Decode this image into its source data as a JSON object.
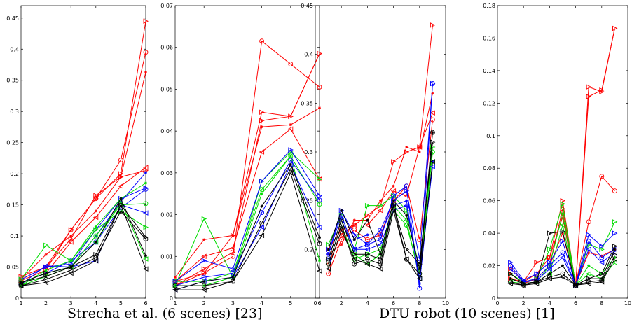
{
  "captions": {
    "left": "Strecha et al. (6 scenes) [23]",
    "right": "DTU robot (10 scenes) [1]"
  },
  "chart_data": [
    {
      "type": "line",
      "group": "Strecha et al. (6 scenes) [23]",
      "x": [
        1,
        2,
        3,
        4,
        5,
        6
      ],
      "xlim": [
        1,
        6
      ],
      "ylim": [
        0,
        0.47
      ],
      "xticks": [
        1,
        2,
        3,
        4,
        5,
        6
      ],
      "yticks": [
        0,
        0.05,
        0.1,
        0.15,
        0.2,
        0.25,
        0.3,
        0.35,
        0.4,
        0.45
      ],
      "ytick_labels": [
        "0",
        "0.05",
        "0.1",
        "0.15",
        "0.2",
        "0.25",
        "0.3",
        "0.35",
        "0.4",
        "0.45"
      ],
      "series": [
        {
          "color": "#ff0000",
          "marker": "triangle-right",
          "values": [
            0.03,
            0.05,
            0.11,
            0.16,
            0.2,
            0.445
          ]
        },
        {
          "color": "#ff0000",
          "marker": "circle",
          "values": [
            0.028,
            0.045,
            0.11,
            0.16,
            0.222,
            0.395
          ]
        },
        {
          "color": "#ff0000",
          "marker": "star",
          "values": [
            0.03,
            0.07,
            0.1,
            0.14,
            0.195,
            0.363
          ]
        },
        {
          "color": "#ff0000",
          "marker": "triangle-left",
          "values": [
            0.025,
            0.04,
            0.09,
            0.13,
            0.18,
            0.21
          ]
        },
        {
          "color": "#ff0000",
          "marker": "triangle-right",
          "values": [
            0.035,
            0.05,
            0.095,
            0.165,
            0.195,
            0.205
          ]
        },
        {
          "color": "#0000ff",
          "marker": "star",
          "values": [
            0.025,
            0.04,
            0.05,
            0.1,
            0.155,
            0.202
          ]
        },
        {
          "color": "#0000ff",
          "marker": "triangle-right",
          "values": [
            0.03,
            0.05,
            0.055,
            0.11,
            0.16,
            0.177
          ]
        },
        {
          "color": "#0000ff",
          "marker": "circle",
          "values": [
            0.025,
            0.04,
            0.06,
            0.09,
            0.145,
            0.175
          ]
        },
        {
          "color": "#0000ff",
          "marker": "triangle-left",
          "values": [
            0.022,
            0.052,
            0.05,
            0.06,
            0.15,
            0.137
          ]
        },
        {
          "color": "#00dd00",
          "marker": "star",
          "values": [
            0.02,
            0.045,
            0.06,
            0.115,
            0.16,
            0.185
          ]
        },
        {
          "color": "#00dd00",
          "marker": "circle",
          "values": [
            0.025,
            0.04,
            0.05,
            0.1,
            0.15,
            0.152
          ]
        },
        {
          "color": "#00dd00",
          "marker": "triangle-right",
          "values": [
            0.03,
            0.085,
            0.06,
            0.11,
            0.14,
            0.114
          ]
        },
        {
          "color": "#00dd00",
          "marker": "triangle-left",
          "values": [
            0.02,
            0.035,
            0.05,
            0.09,
            0.155,
            0.063
          ]
        },
        {
          "color": "#000000",
          "marker": "triangle-right",
          "values": [
            0.025,
            0.04,
            0.05,
            0.07,
            0.15,
            0.098
          ]
        },
        {
          "color": "#000000",
          "marker": "circle",
          "values": [
            0.02,
            0.03,
            0.045,
            0.065,
            0.14,
            0.095
          ]
        },
        {
          "color": "#000000",
          "marker": "star",
          "values": [
            0.025,
            0.035,
            0.05,
            0.09,
            0.16,
            0.068
          ]
        },
        {
          "color": "#000000",
          "marker": "triangle-left",
          "values": [
            0.02,
            0.025,
            0.04,
            0.06,
            0.15,
            0.047
          ]
        }
      ]
    },
    {
      "type": "line",
      "group": "Strecha et al. (6 scenes) [23]",
      "x": [
        1,
        2,
        3,
        4,
        5,
        6
      ],
      "xlim": [
        1,
        6
      ],
      "ylim": [
        0,
        0.07
      ],
      "xticks": [
        1,
        2,
        3,
        4,
        5,
        6
      ],
      "yticks": [
        0,
        0.01,
        0.02,
        0.03,
        0.04,
        0.05,
        0.06,
        0.07
      ],
      "ytick_labels": [
        "0",
        "0.01",
        "0.02",
        "0.03",
        "0.04",
        "0.05",
        "0.06",
        "0.07"
      ],
      "series": [
        {
          "color": "#ff0000",
          "marker": "circle",
          "values": [
            0.004,
            0.006,
            0.01,
            0.0615,
            0.056,
            0.0505
          ]
        },
        {
          "color": "#ff0000",
          "marker": "triangle-right",
          "values": [
            0.003,
            0.006,
            0.015,
            0.0445,
            0.0435,
            0.0585
          ]
        },
        {
          "color": "#ff0000",
          "marker": "star",
          "values": [
            0.005,
            0.014,
            0.015,
            0.041,
            0.0415,
            0.0455
          ]
        },
        {
          "color": "#ff0000",
          "marker": "triangle-left",
          "values": [
            0.004,
            0.01,
            0.012,
            0.035,
            0.0405,
            0.0285
          ]
        },
        {
          "color": "#ff0000",
          "marker": "triangle-right",
          "values": [
            0.003,
            0.007,
            0.011,
            0.0425,
            0.0435,
            0.0585
          ]
        },
        {
          "color": "#00dd00",
          "marker": "triangle-right",
          "values": [
            0.003,
            0.019,
            0.005,
            0.028,
            0.035,
            0.0285
          ]
        },
        {
          "color": "#00dd00",
          "marker": "circle",
          "values": [
            0.004,
            0.004,
            0.006,
            0.026,
            0.034,
            0.0225
          ]
        },
        {
          "color": "#00dd00",
          "marker": "star",
          "values": [
            0.003,
            0.003,
            0.005,
            0.025,
            0.034,
            0.009
          ]
        },
        {
          "color": "#0000ff",
          "marker": "triangle-right",
          "values": [
            0.004,
            0.009,
            0.007,
            0.028,
            0.0355,
            0.0245
          ]
        },
        {
          "color": "#0000ff",
          "marker": "circle",
          "values": [
            0.003,
            0.005,
            0.006,
            0.0205,
            0.033,
            0.0235
          ]
        },
        {
          "color": "#0000ff",
          "marker": "triangle-left",
          "values": [
            0.002,
            0.004,
            0.005,
            0.017,
            0.032,
            0.017
          ]
        },
        {
          "color": "#000000",
          "marker": "star",
          "values": [
            0.002,
            0.004,
            0.005,
            0.022,
            0.032,
            0.0145
          ]
        },
        {
          "color": "#000000",
          "marker": "circle",
          "values": [
            0.003,
            0.003,
            0.004,
            0.018,
            0.031,
            0.013
          ]
        },
        {
          "color": "#000000",
          "marker": "triangle-left",
          "values": [
            0.002,
            0.002,
            0.004,
            0.015,
            0.03,
            0.0065
          ]
        }
      ]
    },
    {
      "type": "line",
      "group": "DTU robot (10 scenes) [1]",
      "x": [
        1,
        2,
        3,
        4,
        5,
        6,
        7,
        8,
        9
      ],
      "xlim": [
        0,
        10
      ],
      "ylim": [
        0.15,
        0.45
      ],
      "xticks": [
        0,
        2,
        4,
        6,
        8,
        10
      ],
      "yticks": [
        0.2,
        0.25,
        0.3,
        0.35,
        0.4,
        0.45
      ],
      "ytick_labels": [
        "0.2",
        "0.25",
        "0.3",
        "0.35",
        "0.4",
        "0.45"
      ],
      "series": [
        {
          "color": "#ff0000",
          "marker": "triangle-right",
          "values": [
            0.2,
            0.22,
            0.225,
            0.235,
            0.245,
            0.29,
            0.3,
            0.305,
            0.43
          ]
        },
        {
          "color": "#ff0000",
          "marker": "circle",
          "values": [
            0.175,
            0.21,
            0.22,
            0.21,
            0.215,
            0.25,
            0.265,
            0.21,
            0.333
          ]
        },
        {
          "color": "#ff0000",
          "marker": "star",
          "values": [
            0.195,
            0.205,
            0.23,
            0.23,
            0.25,
            0.265,
            0.305,
            0.3,
            0.36
          ]
        },
        {
          "color": "#ff0000",
          "marker": "triangle-left",
          "values": [
            0.185,
            0.215,
            0.225,
            0.225,
            0.24,
            0.26,
            0.255,
            0.305,
            0.34
          ]
        },
        {
          "color": "#00dd00",
          "marker": "triangle-right",
          "values": [
            0.205,
            0.235,
            0.2,
            0.245,
            0.245,
            0.255,
            0.24,
            0.18,
            0.305
          ]
        },
        {
          "color": "#00dd00",
          "marker": "circle",
          "values": [
            0.185,
            0.225,
            0.19,
            0.195,
            0.2,
            0.24,
            0.225,
            0.175,
            0.3
          ]
        },
        {
          "color": "#00dd00",
          "marker": "triangle-left",
          "values": [
            0.19,
            0.23,
            0.195,
            0.185,
            0.195,
            0.245,
            0.23,
            0.17,
            0.29
          ]
        },
        {
          "color": "#0000ff",
          "marker": "triangle-right",
          "values": [
            0.2,
            0.24,
            0.215,
            0.205,
            0.22,
            0.25,
            0.26,
            0.19,
            0.37
          ]
        },
        {
          "color": "#0000ff",
          "marker": "circle",
          "values": [
            0.195,
            0.235,
            0.2,
            0.205,
            0.21,
            0.255,
            0.265,
            0.16,
            0.37
          ]
        },
        {
          "color": "#0000ff",
          "marker": "star",
          "values": [
            0.195,
            0.24,
            0.21,
            0.215,
            0.215,
            0.245,
            0.25,
            0.165,
            0.29
          ]
        },
        {
          "color": "#0000ff",
          "marker": "triangle-left",
          "values": [
            0.19,
            0.23,
            0.2,
            0.2,
            0.205,
            0.24,
            0.245,
            0.17,
            0.285
          ]
        },
        {
          "color": "#000000",
          "marker": "star",
          "values": [
            0.2,
            0.24,
            0.21,
            0.23,
            0.195,
            0.25,
            0.235,
            0.18,
            0.32
          ]
        },
        {
          "color": "#000000",
          "marker": "circle",
          "values": [
            0.185,
            0.225,
            0.185,
            0.19,
            0.185,
            0.245,
            0.19,
            0.175,
            0.32
          ]
        },
        {
          "color": "#000000",
          "marker": "triangle-right",
          "values": [
            0.19,
            0.23,
            0.195,
            0.195,
            0.19,
            0.245,
            0.2,
            0.185,
            0.31
          ]
        },
        {
          "color": "#000000",
          "marker": "triangle-left",
          "values": [
            0.18,
            0.22,
            0.19,
            0.185,
            0.18,
            0.24,
            0.19,
            0.17,
            0.29
          ]
        }
      ]
    },
    {
      "type": "line",
      "group": "DTU robot (10 scenes) [1]",
      "x": [
        1,
        2,
        3,
        4,
        5,
        6,
        7,
        8,
        9
      ],
      "xlim": [
        0,
        10
      ],
      "ylim": [
        0,
        0.18
      ],
      "xticks": [
        0,
        2,
        4,
        6,
        8,
        10
      ],
      "yticks": [
        0,
        0.02,
        0.04,
        0.06,
        0.08,
        0.1,
        0.12,
        0.14,
        0.16,
        0.18
      ],
      "ytick_labels": [
        "0",
        "0.02",
        "0.04",
        "0.06",
        "0.08",
        "0.1",
        "0.12",
        "0.14",
        "0.16",
        "0.18"
      ],
      "series": [
        {
          "color": "#ff0000",
          "marker": "triangle-right",
          "values": [
            0.018,
            0.01,
            0.022,
            0.025,
            0.06,
            0.008,
            0.13,
            0.127,
            0.166
          ]
        },
        {
          "color": "#ff0000",
          "marker": "triangle-right",
          "values": [
            0.012,
            0.01,
            0.012,
            0.02,
            0.055,
            0.008,
            0.124,
            0.128,
            0.166
          ]
        },
        {
          "color": "#ff0000",
          "marker": "circle",
          "values": [
            0.02,
            0.01,
            0.015,
            0.025,
            0.05,
            0.008,
            0.047,
            0.075,
            0.066
          ]
        },
        {
          "color": "#ff0000",
          "marker": "star",
          "values": [
            0.015,
            0.009,
            0.012,
            0.02,
            0.04,
            0.008,
            0.028,
            0.026,
            0.03
          ]
        },
        {
          "color": "#00dd00",
          "marker": "triangle-right",
          "values": [
            0.015,
            0.01,
            0.012,
            0.03,
            0.058,
            0.008,
            0.033,
            0.03,
            0.047
          ]
        },
        {
          "color": "#00dd00",
          "marker": "star",
          "values": [
            0.012,
            0.009,
            0.01,
            0.02,
            0.052,
            0.008,
            0.02,
            0.015,
            0.025
          ]
        },
        {
          "color": "#00dd00",
          "marker": "triangle-left",
          "values": [
            0.01,
            0.009,
            0.01,
            0.015,
            0.045,
            0.008,
            0.015,
            0.012,
            0.022
          ]
        },
        {
          "color": "#0000ff",
          "marker": "triangle-right",
          "values": [
            0.022,
            0.011,
            0.015,
            0.022,
            0.035,
            0.008,
            0.039,
            0.032,
            0.04
          ]
        },
        {
          "color": "#0000ff",
          "marker": "circle",
          "values": [
            0.02,
            0.01,
            0.012,
            0.02,
            0.028,
            0.008,
            0.035,
            0.025,
            0.03
          ]
        },
        {
          "color": "#0000ff",
          "marker": "triangle-left",
          "values": [
            0.018,
            0.01,
            0.011,
            0.018,
            0.025,
            0.008,
            0.03,
            0.022,
            0.028
          ]
        },
        {
          "color": "#000000",
          "marker": "triangle-right",
          "values": [
            0.015,
            0.009,
            0.01,
            0.04,
            0.041,
            0.008,
            0.012,
            0.015,
            0.032
          ]
        },
        {
          "color": "#000000",
          "marker": "star",
          "values": [
            0.012,
            0.009,
            0.01,
            0.015,
            0.02,
            0.008,
            0.012,
            0.012,
            0.03
          ]
        },
        {
          "color": "#000000",
          "marker": "circle",
          "values": [
            0.01,
            0.008,
            0.01,
            0.013,
            0.015,
            0.008,
            0.01,
            0.011,
            0.026
          ]
        },
        {
          "color": "#000000",
          "marker": "triangle-left",
          "values": [
            0.009,
            0.008,
            0.009,
            0.012,
            0.013,
            0.008,
            0.009,
            0.01,
            0.024
          ]
        }
      ]
    }
  ]
}
